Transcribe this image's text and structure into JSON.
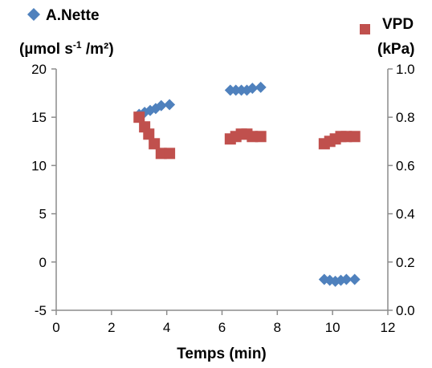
{
  "chart_data": {
    "type": "scatter",
    "title": "",
    "xlabel": "Temps (min)",
    "xlim": [
      0,
      12
    ],
    "xticks": [
      "0",
      "2",
      "4",
      "6",
      "8",
      "10",
      "12"
    ],
    "ylim_left": [
      -5,
      20
    ],
    "yticks_left": [
      "-5",
      "0",
      "5",
      "10",
      "15",
      "20"
    ],
    "ylim_right": [
      0.0,
      1.0
    ],
    "yticks_right": [
      "0.0",
      "0.2",
      "0.4",
      "0.6",
      "0.8",
      "1.0"
    ],
    "grid": false,
    "legend_placement": "top",
    "series": [
      {
        "name": "A.Nette",
        "unit_label": "(µmol s-1 /m²)",
        "axis": "left",
        "marker": "diamond",
        "color": "#4f81bd",
        "points": [
          [
            3.0,
            15.3
          ],
          [
            3.2,
            15.5
          ],
          [
            3.4,
            15.7
          ],
          [
            3.6,
            15.9
          ],
          [
            3.8,
            16.2
          ],
          [
            4.1,
            16.3
          ],
          [
            6.3,
            17.8
          ],
          [
            6.5,
            17.8
          ],
          [
            6.7,
            17.8
          ],
          [
            6.9,
            17.8
          ],
          [
            7.1,
            18.0
          ],
          [
            7.4,
            18.1
          ],
          [
            9.7,
            -1.8
          ],
          [
            9.9,
            -1.9
          ],
          [
            10.1,
            -2.0
          ],
          [
            10.3,
            -1.9
          ],
          [
            10.5,
            -1.8
          ],
          [
            10.8,
            -1.8
          ]
        ]
      },
      {
        "name": "VPD",
        "unit_label": "(kPa)",
        "axis": "right",
        "marker": "square",
        "color": "#c0504d",
        "points": [
          [
            3.0,
            0.8
          ],
          [
            3.2,
            0.76
          ],
          [
            3.35,
            0.73
          ],
          [
            3.55,
            0.69
          ],
          [
            3.8,
            0.65
          ],
          [
            4.1,
            0.65
          ],
          [
            6.3,
            0.71
          ],
          [
            6.5,
            0.72
          ],
          [
            6.7,
            0.73
          ],
          [
            6.9,
            0.73
          ],
          [
            7.1,
            0.72
          ],
          [
            7.4,
            0.72
          ],
          [
            9.7,
            0.69
          ],
          [
            9.9,
            0.7
          ],
          [
            10.1,
            0.71
          ],
          [
            10.3,
            0.72
          ],
          [
            10.5,
            0.72
          ],
          [
            10.8,
            0.72
          ]
        ]
      }
    ]
  }
}
